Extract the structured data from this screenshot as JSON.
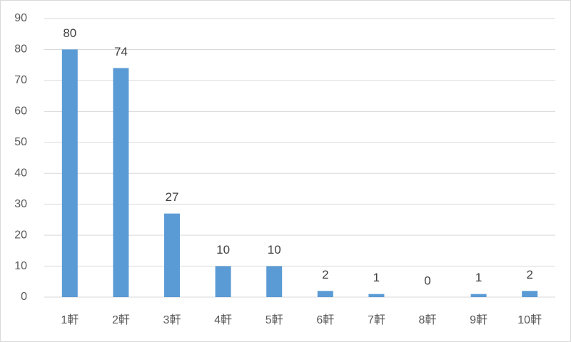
{
  "chart_data": {
    "type": "bar",
    "categories": [
      "1軒",
      "2軒",
      "3軒",
      "4軒",
      "5軒",
      "6軒",
      "7軒",
      "8軒",
      "9軒",
      "10軒"
    ],
    "values": [
      80,
      74,
      27,
      10,
      10,
      2,
      1,
      0,
      1,
      2
    ],
    "color": "#5b9bd5",
    "ylim": [
      0,
      90
    ],
    "yticks": [
      0,
      10,
      20,
      30,
      40,
      50,
      60,
      70,
      80,
      90
    ],
    "grid": true,
    "data_labels": true
  }
}
